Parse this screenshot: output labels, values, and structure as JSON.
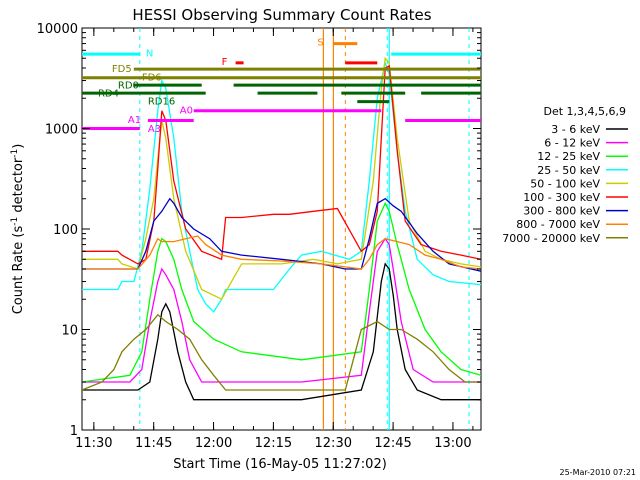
{
  "chart_data": {
    "type": "line",
    "title": "HESSI Observing Summary Count Rates",
    "xlabel": "Start Time (16-May-05 11:27:02)",
    "ylabel_main": "Count Rate (s",
    "ylabel_sup1": "-1",
    "ylabel_mid": " detector",
    "ylabel_sup2": "-1",
    "ylabel_end": ")",
    "timestamp": "25-Mar-2010 07:21",
    "y_scale": "log",
    "ylim": [
      1,
      10000
    ],
    "xlim_minutes": [
      0,
      100
    ],
    "x_ticks": [
      {
        "label": "11:30",
        "value": 2.97
      },
      {
        "label": "11:45",
        "value": 17.97
      },
      {
        "label": "12:00",
        "value": 32.97
      },
      {
        "label": "12:15",
        "value": 47.97
      },
      {
        "label": "12:30",
        "value": 62.97
      },
      {
        "label": "12:45",
        "value": 77.97
      },
      {
        "label": "13:00",
        "value": 92.97
      }
    ],
    "y_ticks": [
      {
        "label": "1",
        "value": 1
      },
      {
        "label": "10",
        "value": 10
      },
      {
        "label": "100",
        "value": 100
      },
      {
        "label": "1000",
        "value": 1000
      },
      {
        "label": "10000",
        "value": 10000
      }
    ],
    "legend_title": "Det 1,3,4,5,6,9",
    "legend_placement": "right",
    "series": [
      {
        "name": "3 - 6 keV",
        "color": "#000000",
        "points": [
          [
            0,
            2.5
          ],
          [
            14,
            2.5
          ],
          [
            17,
            3
          ],
          [
            19,
            8
          ],
          [
            20,
            15
          ],
          [
            21,
            18
          ],
          [
            22,
            15
          ],
          [
            24,
            6
          ],
          [
            26,
            3
          ],
          [
            28,
            2
          ],
          [
            30,
            2
          ],
          [
            40,
            2
          ],
          [
            55,
            2
          ],
          [
            70,
            2.5
          ],
          [
            73,
            6
          ],
          [
            75,
            30
          ],
          [
            76,
            45
          ],
          [
            77,
            40
          ],
          [
            78,
            22
          ],
          [
            79,
            10
          ],
          [
            81,
            4
          ],
          [
            84,
            2.5
          ],
          [
            90,
            2
          ],
          [
            100,
            2
          ]
        ]
      },
      {
        "name": "6 - 12 keV",
        "color": "#ff00ff",
        "points": [
          [
            0,
            3
          ],
          [
            12,
            3
          ],
          [
            15,
            4
          ],
          [
            17,
            12
          ],
          [
            19,
            30
          ],
          [
            20,
            40
          ],
          [
            21,
            35
          ],
          [
            23,
            25
          ],
          [
            25,
            12
          ],
          [
            27,
            5
          ],
          [
            30,
            3
          ],
          [
            40,
            3
          ],
          [
            55,
            3
          ],
          [
            70,
            3.5
          ],
          [
            72,
            15
          ],
          [
            74,
            60
          ],
          [
            76,
            80
          ],
          [
            77,
            70
          ],
          [
            78,
            40
          ],
          [
            80,
            12
          ],
          [
            83,
            4
          ],
          [
            88,
            3
          ],
          [
            100,
            3
          ]
        ]
      },
      {
        "name": "12 - 25 keV",
        "color": "#00ff00",
        "points": [
          [
            0,
            3
          ],
          [
            12,
            3.5
          ],
          [
            15,
            6
          ],
          [
            17,
            20
          ],
          [
            19,
            60
          ],
          [
            20,
            80
          ],
          [
            21,
            75
          ],
          [
            23,
            50
          ],
          [
            25,
            25
          ],
          [
            28,
            12
          ],
          [
            33,
            8
          ],
          [
            40,
            6
          ],
          [
            55,
            5
          ],
          [
            70,
            6
          ],
          [
            72,
            25
          ],
          [
            74,
            120
          ],
          [
            76,
            180
          ],
          [
            77,
            150
          ],
          [
            79,
            70
          ],
          [
            82,
            25
          ],
          [
            86,
            10
          ],
          [
            90,
            6
          ],
          [
            95,
            4
          ],
          [
            100,
            3.5
          ]
        ]
      },
      {
        "name": "25 - 50 keV",
        "color": "#00ffff",
        "points": [
          [
            0,
            25
          ],
          [
            9,
            25
          ],
          [
            10,
            30
          ],
          [
            13,
            30
          ],
          [
            15,
            60
          ],
          [
            17,
            250
          ],
          [
            19,
            1500
          ],
          [
            20,
            3000
          ],
          [
            21,
            2500
          ],
          [
            23,
            800
          ],
          [
            25,
            150
          ],
          [
            27,
            60
          ],
          [
            29,
            25
          ],
          [
            31,
            18
          ],
          [
            33,
            15
          ],
          [
            35,
            20
          ],
          [
            36,
            25
          ],
          [
            40,
            25
          ],
          [
            48,
            25
          ],
          [
            52,
            40
          ],
          [
            55,
            55
          ],
          [
            60,
            60
          ],
          [
            67,
            50
          ],
          [
            70,
            60
          ],
          [
            72,
            300
          ],
          [
            74,
            2000
          ],
          [
            76,
            4500
          ],
          [
            77,
            3500
          ],
          [
            79,
            600
          ],
          [
            81,
            150
          ],
          [
            84,
            50
          ],
          [
            88,
            35
          ],
          [
            92,
            30
          ],
          [
            100,
            28
          ]
        ]
      },
      {
        "name": "50 - 100 keV",
        "color": "#cccc00",
        "points": [
          [
            0,
            50
          ],
          [
            9,
            50
          ],
          [
            10,
            45
          ],
          [
            14,
            40
          ],
          [
            16,
            80
          ],
          [
            18,
            200
          ],
          [
            19,
            500
          ],
          [
            20,
            1200
          ],
          [
            21,
            800
          ],
          [
            23,
            200
          ],
          [
            26,
            60
          ],
          [
            30,
            25
          ],
          [
            35,
            20
          ],
          [
            40,
            45
          ],
          [
            50,
            45
          ],
          [
            58,
            50
          ],
          [
            64,
            45
          ],
          [
            70,
            50
          ],
          [
            73,
            300
          ],
          [
            75,
            2500
          ],
          [
            76,
            5000
          ],
          [
            77,
            4500
          ],
          [
            79,
            800
          ],
          [
            82,
            120
          ],
          [
            86,
            60
          ],
          [
            90,
            50
          ],
          [
            95,
            45
          ],
          [
            100,
            42
          ]
        ]
      },
      {
        "name": "100 - 300 keV",
        "color": "#ff0000",
        "points": [
          [
            0,
            60
          ],
          [
            9,
            60
          ],
          [
            10,
            55
          ],
          [
            14,
            45
          ],
          [
            16,
            50
          ],
          [
            18,
            120
          ],
          [
            19,
            400
          ],
          [
            20,
            1500
          ],
          [
            21,
            1200
          ],
          [
            23,
            300
          ],
          [
            26,
            100
          ],
          [
            30,
            60
          ],
          [
            35,
            50
          ],
          [
            36,
            130
          ],
          [
            40,
            130
          ],
          [
            48,
            140
          ],
          [
            52,
            140
          ],
          [
            58,
            150
          ],
          [
            64,
            160
          ],
          [
            70,
            60
          ],
          [
            72,
            70
          ],
          [
            74,
            150
          ],
          [
            75,
            800
          ],
          [
            76,
            4000
          ],
          [
            77,
            4200
          ],
          [
            79,
            600
          ],
          [
            81,
            120
          ],
          [
            85,
            70
          ],
          [
            90,
            60
          ],
          [
            95,
            55
          ],
          [
            100,
            50
          ]
        ]
      },
      {
        "name": "300 - 800 keV",
        "color": "#0000cc",
        "points": [
          [
            0,
            40
          ],
          [
            10,
            40
          ],
          [
            14,
            40
          ],
          [
            16,
            60
          ],
          [
            18,
            120
          ],
          [
            20,
            150
          ],
          [
            22,
            200
          ],
          [
            23,
            180
          ],
          [
            25,
            130
          ],
          [
            28,
            100
          ],
          [
            32,
            80
          ],
          [
            35,
            60
          ],
          [
            40,
            55
          ],
          [
            50,
            50
          ],
          [
            60,
            45
          ],
          [
            66,
            40
          ],
          [
            70,
            40
          ],
          [
            72,
            80
          ],
          [
            74,
            180
          ],
          [
            76,
            200
          ],
          [
            78,
            170
          ],
          [
            80,
            150
          ],
          [
            84,
            90
          ],
          [
            88,
            60
          ],
          [
            92,
            45
          ],
          [
            100,
            38
          ]
        ]
      },
      {
        "name": "800 - 7000 keV",
        "color": "#ff8000",
        "points": [
          [
            0,
            40
          ],
          [
            10,
            40
          ],
          [
            14,
            40
          ],
          [
            17,
            55
          ],
          [
            19,
            80
          ],
          [
            20,
            75
          ],
          [
            23,
            75
          ],
          [
            26,
            80
          ],
          [
            29,
            85
          ],
          [
            31,
            70
          ],
          [
            35,
            55
          ],
          [
            40,
            50
          ],
          [
            50,
            48
          ],
          [
            60,
            45
          ],
          [
            66,
            42
          ],
          [
            70,
            40
          ],
          [
            72,
            50
          ],
          [
            74,
            70
          ],
          [
            76,
            80
          ],
          [
            79,
            75
          ],
          [
            82,
            70
          ],
          [
            86,
            55
          ],
          [
            90,
            50
          ],
          [
            95,
            42
          ],
          [
            100,
            40
          ]
        ]
      },
      {
        "name": "7000 - 20000 keV",
        "color": "#808000",
        "points": [
          [
            0,
            2.5
          ],
          [
            5,
            3
          ],
          [
            8,
            4
          ],
          [
            10,
            6
          ],
          [
            13,
            8
          ],
          [
            16,
            10
          ],
          [
            19,
            14
          ],
          [
            21,
            12
          ],
          [
            24,
            10
          ],
          [
            27,
            8
          ],
          [
            30,
            5
          ],
          [
            33,
            3.5
          ],
          [
            36,
            2.5
          ],
          [
            40,
            2.5
          ],
          [
            50,
            2.5
          ],
          [
            60,
            2.5
          ],
          [
            66,
            2.5
          ],
          [
            70,
            10
          ],
          [
            74,
            12
          ],
          [
            77,
            10
          ],
          [
            80,
            10
          ],
          [
            84,
            8
          ],
          [
            88,
            6
          ],
          [
            92,
            4
          ],
          [
            96,
            3
          ],
          [
            100,
            3
          ]
        ]
      }
    ],
    "dashed_lines": [
      {
        "x": 14.5,
        "color": "#00ffff"
      },
      {
        "x": 66,
        "color": "#ff8000"
      },
      {
        "x": 76.5,
        "color": "#00ffff"
      },
      {
        "x": 97,
        "color": "#00ffff"
      }
    ],
    "solid_lines": [
      {
        "x": 60.5,
        "color": "#ff8000"
      },
      {
        "x": 63,
        "color": "#ff8000"
      },
      {
        "x": 77,
        "color": "#00ffff"
      }
    ],
    "flag_bars": [
      {
        "label": "N",
        "color": "#00ffff",
        "y": 5500,
        "segments": [
          [
            0,
            14.5
          ],
          [
            77.5,
            100
          ]
        ],
        "label_x": 16,
        "label_y": 5700
      },
      {
        "label": "F",
        "color": "#ff0000",
        "y": 4500,
        "segments": [
          [
            38.5,
            40.5
          ],
          [
            66,
            74
          ]
        ],
        "label_x": 35,
        "label_y": 4700
      },
      {
        "label": "S",
        "color": "#ff8000",
        "y": 7000,
        "segments": [
          [
            63,
            69
          ]
        ],
        "label_x": 59,
        "label_y": 7300
      },
      {
        "label": "FD5",
        "color": "#808000",
        "y": 3900,
        "segments": [
          [
            13,
            100
          ]
        ],
        "label_x": 7.5,
        "label_y": 4000
      },
      {
        "label": "FD6",
        "color": "#808000",
        "y": 3200,
        "segments": [
          [
            0,
            100
          ]
        ],
        "label_x": 15,
        "label_y": 3300
      },
      {
        "label": "RD0",
        "color": "#006400",
        "y": 2700,
        "segments": [
          [
            13,
            30
          ],
          [
            38,
            100
          ]
        ],
        "label_x": 9,
        "label_y": 2750
      },
      {
        "label": "RD4",
        "color": "#006400",
        "y": 2250,
        "segments": [
          [
            0,
            31
          ],
          [
            44,
            59
          ],
          [
            65,
            81
          ],
          [
            85,
            100
          ]
        ],
        "label_x": 4,
        "label_y": 2280
      },
      {
        "label": "RD16",
        "color": "#006400",
        "y": 1850,
        "segments": [
          [
            69,
            77
          ]
        ],
        "label_x": 16.5,
        "label_y": 1900
      },
      {
        "label": "A0",
        "color": "#ff00ff",
        "y": 1500,
        "segments": [
          [
            28,
            75
          ]
        ],
        "label_x": 24.5,
        "label_y": 1540
      },
      {
        "label": "A1",
        "color": "#ff00ff",
        "y": 1200,
        "segments": [
          [
            16.5,
            28
          ],
          [
            81,
            100
          ]
        ],
        "label_x": 11.5,
        "label_y": 1240
      },
      {
        "label": "A3",
        "color": "#ff00ff",
        "y": 1000,
        "segments": [
          [
            0,
            14.5
          ]
        ],
        "label_x": 16.5,
        "label_y": 1010
      }
    ]
  }
}
